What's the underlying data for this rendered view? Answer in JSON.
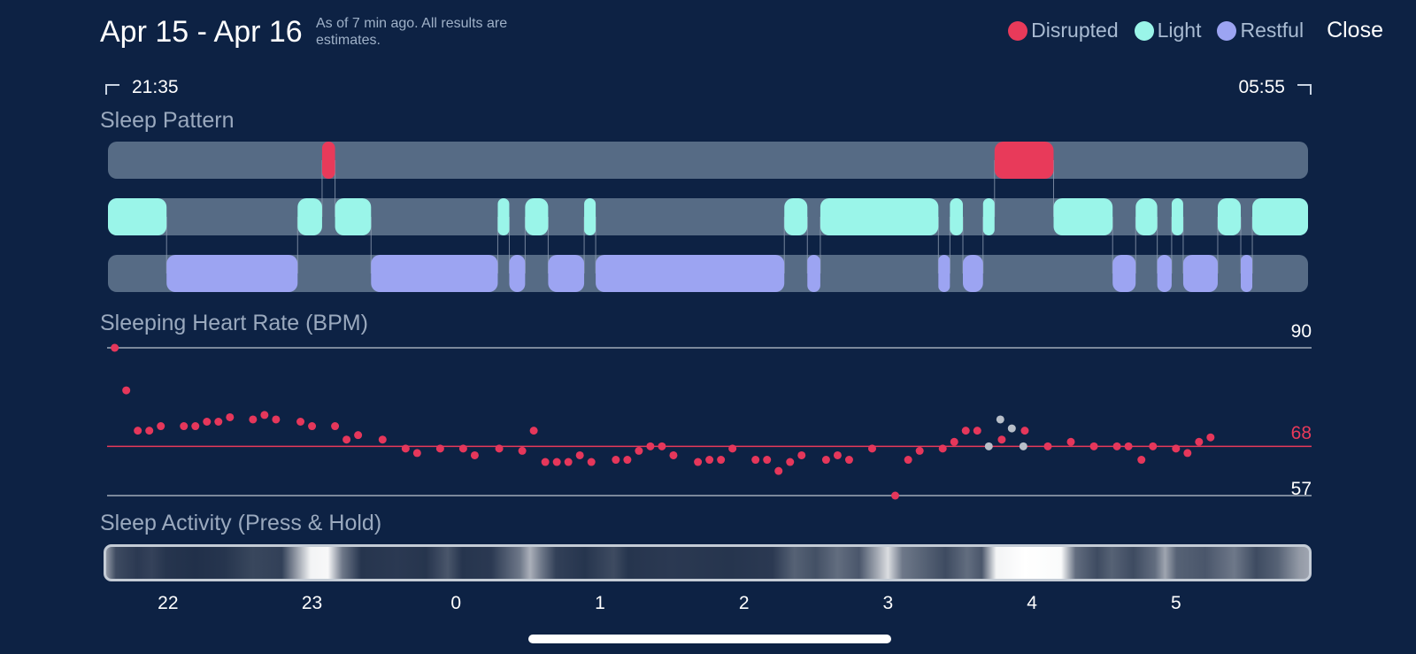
{
  "header": {
    "title": "Apr 15 - Apr 16",
    "subtitle": "As of 7 min ago. All results are estimates.",
    "close_label": "Close"
  },
  "legend": [
    {
      "label": "Disrupted",
      "color": "#e83a5a"
    },
    {
      "label": "Light",
      "color": "#9af5e9"
    },
    {
      "label": "Restful",
      "color": "#9ca4f2"
    }
  ],
  "sleep_window": {
    "start": "21:35",
    "end": "05:55"
  },
  "sections": {
    "pattern": "Sleep Pattern",
    "heart_rate": "Sleeping Heart Rate (BPM)",
    "activity": "Sleep Activity (Press & Hold)"
  },
  "colors": {
    "background": "#0d2244",
    "track": "#566b85",
    "disrupted": "#e83a5a",
    "light": "#9af5e9",
    "restful": "#9ca4f2",
    "hr_dot": "#e5375b",
    "hr_dot_estimated": "#b8bfc9",
    "avg_line": "#e83a5a",
    "ref_line": "#a0aab8"
  },
  "hr_labels": {
    "max": "90",
    "avg": "68",
    "min": "57"
  },
  "axis_ticks": [
    "22",
    "23",
    "0",
    "1",
    "2",
    "3",
    "4",
    "5"
  ],
  "chart_data": [
    {
      "type": "timeline",
      "name": "Sleep Pattern",
      "x_unit": "hours since 22:00 (start 21:35 = -0.417, end 05:55 = 7.917)",
      "stages": {
        "Disrupted": [
          [
            1.07,
            1.16
          ],
          [
            5.74,
            6.15
          ]
        ],
        "Light": [
          [
            -0.417,
            -0.01
          ],
          [
            0.9,
            1.07
          ],
          [
            1.16,
            1.41
          ],
          [
            2.29,
            2.37
          ],
          [
            2.48,
            2.64
          ],
          [
            2.89,
            2.97
          ],
          [
            4.28,
            4.44
          ],
          [
            4.53,
            5.35
          ],
          [
            5.43,
            5.52
          ],
          [
            5.66,
            5.74
          ],
          [
            6.15,
            6.56
          ],
          [
            6.72,
            6.87
          ],
          [
            6.97,
            7.05
          ],
          [
            7.29,
            7.45
          ],
          [
            7.53,
            7.917
          ]
        ],
        "Restful": [
          [
            -0.01,
            0.9
          ],
          [
            1.41,
            2.29
          ],
          [
            2.37,
            2.48
          ],
          [
            2.64,
            2.89
          ],
          [
            2.97,
            4.28
          ],
          [
            4.44,
            4.53
          ],
          [
            5.35,
            5.43
          ],
          [
            5.52,
            5.66
          ],
          [
            6.56,
            6.72
          ],
          [
            6.87,
            6.97
          ],
          [
            7.05,
            7.29
          ],
          [
            7.45,
            7.53
          ]
        ]
      }
    },
    {
      "type": "scatter",
      "name": "Sleeping Heart Rate (BPM)",
      "x_unit": "hours since 22:00",
      "ylim": [
        57,
        90
      ],
      "reference_lines": {
        "max": 90,
        "avg": 68,
        "min": 57
      },
      "points": [
        [
          -0.37,
          90
        ],
        [
          -0.29,
          80.5
        ],
        [
          -0.21,
          71.5
        ],
        [
          -0.13,
          71.5
        ],
        [
          -0.05,
          72.5
        ],
        [
          0.11,
          72.5
        ],
        [
          0.19,
          72.5
        ],
        [
          0.27,
          73.5
        ],
        [
          0.35,
          73.5
        ],
        [
          0.43,
          74.5
        ],
        [
          0.59,
          74
        ],
        [
          0.67,
          75
        ],
        [
          0.75,
          74
        ],
        [
          0.92,
          73.5
        ],
        [
          1.0,
          72.5
        ],
        [
          1.16,
          72.5
        ],
        [
          1.24,
          69.5
        ],
        [
          1.32,
          70.5
        ],
        [
          1.49,
          69.5
        ],
        [
          1.65,
          67.5
        ],
        [
          1.73,
          66.5
        ],
        [
          1.89,
          67.5
        ],
        [
          2.05,
          67.5
        ],
        [
          2.13,
          66
        ],
        [
          2.3,
          67.5
        ],
        [
          2.46,
          67
        ],
        [
          2.54,
          71.5
        ],
        [
          2.62,
          64.5
        ],
        [
          2.7,
          64.5
        ],
        [
          2.78,
          64.5
        ],
        [
          2.86,
          66
        ],
        [
          2.94,
          64.5
        ],
        [
          3.11,
          65
        ],
        [
          3.19,
          65
        ],
        [
          3.27,
          67
        ],
        [
          3.35,
          68
        ],
        [
          3.43,
          68
        ],
        [
          3.51,
          66
        ],
        [
          3.68,
          64.5
        ],
        [
          3.76,
          65
        ],
        [
          3.84,
          65
        ],
        [
          3.92,
          67.5
        ],
        [
          4.08,
          65
        ],
        [
          4.16,
          65
        ],
        [
          4.24,
          62.5
        ],
        [
          4.32,
          64.5
        ],
        [
          4.4,
          66
        ],
        [
          4.57,
          65
        ],
        [
          4.65,
          66
        ],
        [
          4.73,
          65
        ],
        [
          4.89,
          67.5
        ],
        [
          5.05,
          57
        ],
        [
          5.14,
          65
        ],
        [
          5.22,
          67
        ],
        [
          5.38,
          67.5
        ],
        [
          5.46,
          69
        ],
        [
          5.54,
          71.5
        ],
        [
          5.62,
          71.5
        ],
        [
          5.79,
          69.5
        ],
        [
          5.95,
          71.5
        ],
        [
          6.11,
          68
        ],
        [
          6.27,
          69
        ],
        [
          6.43,
          68
        ],
        [
          6.59,
          68
        ],
        [
          6.67,
          68
        ],
        [
          6.76,
          65
        ],
        [
          6.84,
          68
        ],
        [
          7.0,
          67.5
        ],
        [
          7.08,
          66.5
        ],
        [
          7.16,
          69
        ],
        [
          7.24,
          70
        ]
      ],
      "estimated_points": [
        [
          5.7,
          68
        ],
        [
          5.78,
          74
        ],
        [
          5.86,
          72
        ],
        [
          5.94,
          68
        ]
      ]
    }
  ],
  "activity_levels": [
    [
      -0.417,
      0.55
    ],
    [
      -0.35,
      0.2
    ],
    [
      -0.2,
      0.12
    ],
    [
      -0.1,
      0.16
    ],
    [
      0.0,
      0.1
    ],
    [
      0.2,
      0.08
    ],
    [
      0.4,
      0.1
    ],
    [
      0.6,
      0.18
    ],
    [
      0.8,
      0.15
    ],
    [
      0.9,
      0.55
    ],
    [
      1.0,
      0.95
    ],
    [
      1.12,
      0.97
    ],
    [
      1.22,
      0.4
    ],
    [
      1.35,
      0.1
    ],
    [
      1.6,
      0.12
    ],
    [
      1.8,
      0.1
    ],
    [
      1.95,
      0.25
    ],
    [
      2.05,
      0.1
    ],
    [
      2.25,
      0.12
    ],
    [
      2.45,
      0.4
    ],
    [
      2.52,
      0.65
    ],
    [
      2.6,
      0.4
    ],
    [
      2.7,
      0.15
    ],
    [
      2.9,
      0.1
    ],
    [
      3.1,
      0.2
    ],
    [
      3.2,
      0.1
    ],
    [
      3.5,
      0.12
    ],
    [
      3.9,
      0.1
    ],
    [
      4.2,
      0.12
    ],
    [
      4.35,
      0.3
    ],
    [
      4.5,
      0.22
    ],
    [
      4.65,
      0.35
    ],
    [
      4.8,
      0.25
    ],
    [
      4.92,
      0.6
    ],
    [
      5.0,
      0.85
    ],
    [
      5.1,
      0.4
    ],
    [
      5.25,
      0.3
    ],
    [
      5.4,
      0.2
    ],
    [
      5.55,
      0.35
    ],
    [
      5.65,
      0.25
    ],
    [
      5.75,
      0.95
    ],
    [
      5.95,
      1.0
    ],
    [
      6.2,
      0.98
    ],
    [
      6.3,
      0.35
    ],
    [
      6.45,
      0.2
    ],
    [
      6.55,
      0.3
    ],
    [
      6.7,
      0.2
    ],
    [
      6.85,
      0.35
    ],
    [
      6.92,
      0.6
    ],
    [
      7.0,
      0.3
    ],
    [
      7.2,
      0.25
    ],
    [
      7.4,
      0.4
    ],
    [
      7.55,
      0.2
    ],
    [
      7.7,
      0.3
    ],
    [
      7.85,
      0.55
    ],
    [
      7.917,
      0.6
    ]
  ]
}
